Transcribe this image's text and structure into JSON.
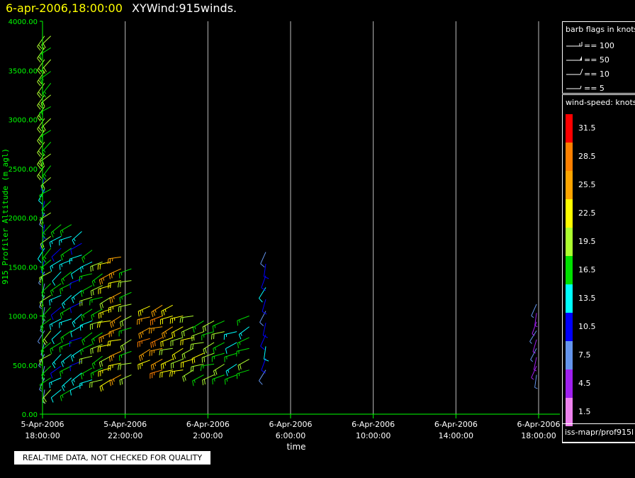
{
  "header": {
    "datetime": "6-apr-2006,18:00:00",
    "product": "XYWind:915winds."
  },
  "notice": "REAL-TIME DATA, NOT CHECKED FOR QUALITY",
  "footer_label": "iss-mapr/prof915l",
  "colors": {
    "axis": "#00ff00",
    "grid": "#bbbbbb",
    "text": "#ffffff",
    "title_date": "#ffff00"
  },
  "barb_legend": {
    "title": "barb flags in knots",
    "entries": [
      "== 100",
      "== 50",
      "== 10",
      "== 5"
    ]
  },
  "speed_legend": {
    "title": "wind-speed: knots",
    "bins": [
      {
        "label": "31.5",
        "color": "#ff0000"
      },
      {
        "label": "28.5",
        "color": "#ff8000"
      },
      {
        "label": "25.5",
        "color": "#ffa500"
      },
      {
        "label": "22.5",
        "color": "#ffff00"
      },
      {
        "label": "19.5",
        "color": "#adff2f"
      },
      {
        "label": "16.5",
        "color": "#00e000"
      },
      {
        "label": "13.5",
        "color": "#00ffff"
      },
      {
        "label": "10.5",
        "color": "#0000ff"
      },
      {
        "label": "7.5",
        "color": "#6495ed"
      },
      {
        "label": "4.5",
        "color": "#a020f0"
      },
      {
        "label": "1.5",
        "color": "#ee82ee"
      }
    ]
  },
  "chart_data": {
    "type": "scatter",
    "title": "",
    "xlabel": "time",
    "ylabel": "915 Profiler Altitude (m agl)",
    "ylim": [
      0,
      4000
    ],
    "xlim_hours": [
      0,
      24.1
    ],
    "y_ticks": [
      "0.00",
      "500.00",
      "1000.00",
      "1500.00",
      "2000.00",
      "2500.00",
      "3000.00",
      "3500.00",
      "4000.00"
    ],
    "x_ticks": [
      {
        "date": "5-Apr-2006",
        "time": "18:00:00",
        "hour": 0
      },
      {
        "date": "5-Apr-2006",
        "time": "22:00:00",
        "hour": 4
      },
      {
        "date": "6-Apr-2006",
        "time": "2:00:00",
        "hour": 8
      },
      {
        "date": "6-Apr-2006",
        "time": "6:00:00",
        "hour": 12
      },
      {
        "date": "6-Apr-2006",
        "time": "10:00:00",
        "hour": 16
      },
      {
        "date": "6-Apr-2006",
        "time": "14:00:00",
        "hour": 20
      },
      {
        "date": "6-Apr-2006",
        "time": "18:00:00",
        "hour": 24
      }
    ],
    "grid": true,
    "legend": "right",
    "profiles": [
      {
        "t": 0.1,
        "base": 250,
        "top": 3950,
        "step": 120,
        "speed": 10,
        "dir": 200,
        "vary": "upper-green"
      },
      {
        "t": 0.4,
        "base": 250,
        "top": 3950,
        "step": 120,
        "speed": 17,
        "dir": 230
      },
      {
        "t": 0.9,
        "base": 250,
        "top": 2000,
        "step": 120,
        "speed": 13,
        "dir": 235
      },
      {
        "t": 1.4,
        "base": 250,
        "top": 1950,
        "step": 120,
        "speed": 15,
        "dir": 240
      },
      {
        "t": 1.9,
        "base": 300,
        "top": 1900,
        "step": 120,
        "speed": 12,
        "dir": 240
      },
      {
        "t": 2.4,
        "base": 350,
        "top": 1700,
        "step": 120,
        "speed": 16,
        "dir": 245
      },
      {
        "t": 2.9,
        "base": 350,
        "top": 1650,
        "step": 120,
        "speed": 17,
        "dir": 245
      },
      {
        "t": 3.3,
        "base": 350,
        "top": 1600,
        "step": 120,
        "speed": 22,
        "dir": 250
      },
      {
        "t": 3.8,
        "base": 400,
        "top": 1600,
        "step": 120,
        "speed": 24,
        "dir": 250
      },
      {
        "t": 4.3,
        "base": 400,
        "top": 1500,
        "step": 120,
        "speed": 18,
        "dir": 250
      },
      {
        "t": 5.2,
        "base": 550,
        "top": 1200,
        "step": 110,
        "speed": 25,
        "dir": 250
      },
      {
        "t": 5.8,
        "base": 450,
        "top": 1200,
        "step": 110,
        "speed": 26,
        "dir": 250
      },
      {
        "t": 6.3,
        "base": 450,
        "top": 1150,
        "step": 110,
        "speed": 22,
        "dir": 250
      },
      {
        "t": 6.8,
        "base": 450,
        "top": 1050,
        "step": 110,
        "speed": 21,
        "dir": 250
      },
      {
        "t": 7.3,
        "base": 450,
        "top": 1050,
        "step": 110,
        "speed": 20,
        "dir": 250
      },
      {
        "t": 7.8,
        "base": 400,
        "top": 1050,
        "step": 110,
        "speed": 19,
        "dir": 250
      },
      {
        "t": 8.3,
        "base": 400,
        "top": 1000,
        "step": 110,
        "speed": 18,
        "dir": 250
      },
      {
        "t": 8.8,
        "base": 400,
        "top": 950,
        "step": 110,
        "speed": 17,
        "dir": 250
      },
      {
        "t": 9.4,
        "base": 400,
        "top": 900,
        "step": 110,
        "speed": 14,
        "dir": 245
      },
      {
        "t": 10.0,
        "base": 450,
        "top": 1000,
        "step": 110,
        "speed": 16,
        "dir": 245
      },
      {
        "t": 10.8,
        "base": 450,
        "top": 1700,
        "step": 120,
        "speed": 10,
        "dir": 200
      },
      {
        "t": 23.9,
        "base": 400,
        "top": 1150,
        "step": 90,
        "speed": 5,
        "dir": 200
      }
    ]
  }
}
